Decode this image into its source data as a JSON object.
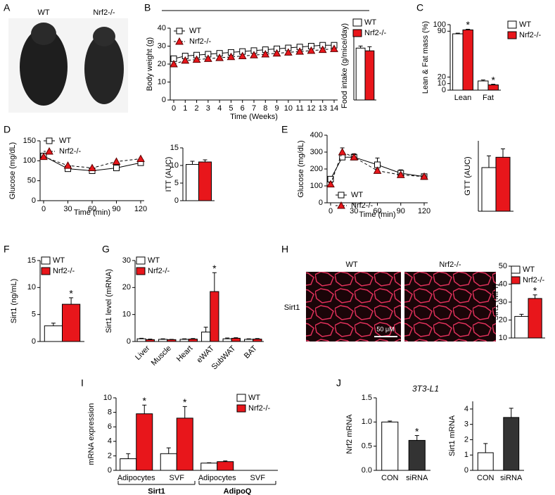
{
  "chart_data": [
    {
      "type": "image",
      "panel": "A",
      "labels": [
        "WT",
        "Nrf2-/-"
      ]
    },
    {
      "type": "line",
      "panel": "B",
      "xlabel": "Time (Weeks)",
      "ylabel": "Body weight (g)",
      "legend": "upper left",
      "x": [
        0,
        1,
        2,
        3,
        4,
        5,
        6,
        7,
        8,
        9,
        10,
        11,
        12,
        13,
        14
      ],
      "xlim": [
        0,
        14
      ],
      "xticks": [
        0,
        1,
        2,
        3,
        4,
        5,
        6,
        7,
        8,
        9,
        10,
        11,
        12,
        13,
        14
      ],
      "ylim": [
        0,
        40
      ],
      "yticks": [
        0,
        10,
        20,
        30,
        40
      ],
      "series": [
        {
          "name": "WT",
          "color": "#ffffff",
          "marker": "square",
          "values": [
            23,
            24.5,
            25,
            25.5,
            26,
            26.5,
            27,
            27.5,
            28,
            28.5,
            29,
            29.5,
            30,
            30.5,
            30.5
          ]
        },
        {
          "name": "Nrf2-/-",
          "color": "#e8161b",
          "marker": "triangle",
          "dashed": true,
          "values": [
            20,
            22,
            22.5,
            23,
            23.5,
            24,
            24.5,
            25,
            25.5,
            26,
            26.5,
            27,
            27.5,
            28,
            28.5
          ]
        }
      ]
    },
    {
      "type": "bar",
      "ylabel": "Food intake (g/mice/day)",
      "legend": "upper right",
      "categories": [
        null
      ],
      "ylim": [
        0,
        5
      ],
      "series": [
        {
          "name": "WT",
          "color": "#ffffff",
          "values": [
            3.8
          ],
          "errors": [
            0.15
          ]
        },
        {
          "name": "Nrf2-/-",
          "color": "#e8161b",
          "values": [
            3.6
          ],
          "errors": [
            0.3
          ]
        }
      ]
    },
    {
      "type": "bar",
      "panel": "C",
      "ylabel": "Lean & Fat mass (%)",
      "legend": "upper right",
      "categories": [
        "Lean",
        "Fat"
      ],
      "ylim": [
        0,
        100
      ],
      "yticks": [
        0,
        10,
        20,
        90,
        100
      ],
      "series": [
        {
          "name": "WT",
          "color": "#ffffff",
          "values": [
            86,
            14
          ],
          "errors": [
            1,
            1.5
          ]
        },
        {
          "name": "Nrf2-/-",
          "color": "#e8161b",
          "values": [
            92,
            8
          ],
          "errors": [
            1,
            1
          ]
        }
      ],
      "annotations": [
        {
          "text": "*",
          "series": 1,
          "index": 0
        },
        {
          "text": "*",
          "series": 1,
          "index": 1
        }
      ]
    },
    {
      "type": "line",
      "panel": "D",
      "xlabel": "Time (min)",
      "ylabel": "Glucose (mg/dL)",
      "legend": "upper left",
      "x": [
        0,
        30,
        60,
        90,
        120
      ],
      "xlim": [
        0,
        120
      ],
      "xticks": [
        0,
        30,
        60,
        90,
        120
      ],
      "ylim": [
        0,
        150
      ],
      "yticks": [
        0,
        50,
        100,
        150
      ],
      "series": [
        {
          "name": "WT",
          "color": "#ffffff",
          "marker": "square",
          "values": [
            112,
            80,
            75,
            82,
            95
          ]
        },
        {
          "name": "Nrf2-/-",
          "color": "#e8161b",
          "marker": "triangle",
          "dashed": true,
          "values": [
            110,
            88,
            82,
            98,
            105
          ]
        }
      ]
    },
    {
      "type": "bar",
      "ylabel": "ITT (AUC)",
      "categories": [
        null
      ],
      "ylim": [
        0,
        15
      ],
      "yticks": [
        0,
        5,
        10,
        15
      ],
      "series": [
        {
          "name": "WT",
          "color": "#ffffff",
          "values": [
            10.3
          ],
          "errors": [
            0.9
          ]
        },
        {
          "name": "Nrf2-/-",
          "color": "#e8161b",
          "values": [
            11
          ],
          "errors": [
            0.6
          ]
        }
      ]
    },
    {
      "type": "line",
      "panel": "E",
      "xlabel": "Time (min)",
      "ylabel": "Glucose (mg/dL)",
      "legend": "lower left",
      "x": [
        0,
        15,
        30,
        60,
        90,
        120
      ],
      "xlim": [
        0,
        120
      ],
      "xticks": [
        0,
        30,
        60,
        90,
        120
      ],
      "ylim": [
        0,
        400
      ],
      "yticks": [
        0,
        100,
        200,
        300,
        400
      ],
      "series": [
        {
          "name": "WT",
          "color": "#ffffff",
          "marker": "square",
          "values": [
            140,
            270,
            270,
            225,
            175,
            155
          ],
          "errors": [
            10,
            20,
            20,
            40,
            20,
            10
          ]
        },
        {
          "name": "Nrf2-/-",
          "color": "#e8161b",
          "marker": "triangle",
          "dashed": true,
          "values": [
            110,
            300,
            270,
            190,
            165,
            155
          ],
          "errors": [
            10,
            25,
            15,
            10,
            10,
            8
          ]
        }
      ]
    },
    {
      "type": "bar",
      "ylabel": "GTT (AUC)",
      "categories": [
        null
      ],
      "ylim": [
        0,
        15
      ],
      "series": [
        {
          "name": "WT",
          "color": "#ffffff",
          "values": [
            9.3
          ],
          "errors": [
            2.5
          ]
        },
        {
          "name": "Nrf2-/-",
          "color": "#e8161b",
          "values": [
            11.5
          ],
          "errors": [
            1.8
          ]
        }
      ]
    },
    {
      "type": "bar",
      "panel": "F",
      "ylabel": "Sirt1 (ng/mL)",
      "legend": "upper left",
      "categories": [
        null
      ],
      "ylim": [
        0,
        15
      ],
      "yticks": [
        0,
        5,
        10,
        15
      ],
      "series": [
        {
          "name": "WT",
          "color": "#ffffff",
          "values": [
            2.9
          ],
          "errors": [
            0.5
          ]
        },
        {
          "name": "Nrf2-/-",
          "color": "#e8161b",
          "values": [
            6.9
          ],
          "errors": [
            1.2
          ]
        }
      ],
      "annotations": [
        {
          "text": "*",
          "series": 1,
          "index": 0
        }
      ]
    },
    {
      "type": "bar",
      "panel": "G",
      "ylabel": "Sirt1 level (mRNA)",
      "legend": "upper left",
      "xlabel_rotation": 45,
      "categories": [
        "Liver",
        "Muscle",
        "Heart",
        "eWAT",
        "SubWAT",
        "BAT"
      ],
      "ylim": [
        0,
        30
      ],
      "yticks": [
        0,
        10,
        20,
        30
      ],
      "series": [
        {
          "name": "WT",
          "color": "#ffffff",
          "values": [
            1.0,
            0.8,
            0.8,
            3.5,
            1.0,
            0.8
          ],
          "errors": [
            0.2,
            0.2,
            0.2,
            1.8,
            0.3,
            0.2
          ]
        },
        {
          "name": "Nrf2-/-",
          "color": "#e8161b",
          "values": [
            0.7,
            0.7,
            0.9,
            18.5,
            1.2,
            0.9
          ],
          "errors": [
            0.2,
            0.1,
            0.2,
            7,
            0.2,
            0.2
          ]
        }
      ],
      "annotations": [
        {
          "text": "*",
          "series": 1,
          "index": 3
        }
      ]
    },
    {
      "type": "image",
      "panel": "H",
      "labels": [
        "WT",
        "Nrf2-/-"
      ],
      "stain": "Sirt1",
      "scale_bar": "50 μM"
    },
    {
      "type": "bar",
      "ylabel": "Sirt1 (MFI)",
      "legend": "upper left",
      "categories": [
        null
      ],
      "ylim": [
        10,
        50
      ],
      "yticks": [
        10,
        20,
        30,
        40,
        50
      ],
      "series": [
        {
          "name": "WT",
          "color": "#ffffff",
          "values": [
            22
          ],
          "errors": [
            1.2
          ]
        },
        {
          "name": "Nrf2-/-",
          "color": "#e8161b",
          "values": [
            32
          ],
          "errors": [
            2
          ]
        }
      ],
      "annotations": [
        {
          "text": "*",
          "series": 1,
          "index": 0
        }
      ]
    },
    {
      "type": "bar",
      "panel": "I",
      "ylabel": "mRNA expression",
      "legend": "upper right",
      "categories": [
        "Adipocytes",
        "SVF",
        "Adipocytes",
        "SVF"
      ],
      "groups": [
        "Sirt1",
        "AdipoQ"
      ],
      "ylim": [
        0,
        10
      ],
      "yticks": [
        0,
        2,
        4,
        6,
        8,
        10
      ],
      "series": [
        {
          "name": "WT",
          "color": "#ffffff",
          "values": [
            1.6,
            2.3,
            1.0,
            null
          ],
          "errors": [
            0.7,
            0.8,
            0.05,
            null
          ]
        },
        {
          "name": "Nrf2-/-",
          "color": "#e8161b",
          "values": [
            7.8,
            7.2,
            1.2,
            null
          ],
          "errors": [
            1.2,
            1.6,
            0.1,
            null
          ]
        }
      ],
      "annotations": [
        {
          "text": "*",
          "series": 1,
          "index": 0
        },
        {
          "text": "*",
          "series": 1,
          "index": 1
        }
      ]
    },
    {
      "type": "bar",
      "panel": "J",
      "subtitle": "3T3-L1",
      "ylabel": "Nrf2 mRNA",
      "categories": [
        "CON",
        "siRNA"
      ],
      "ylim": [
        0,
        1.5
      ],
      "yticks": [
        {
          "value": 0,
          "label": "0.0"
        },
        0.5,
        {
          "value": 1,
          "label": "1.0"
        },
        1.5
      ],
      "series": [
        {
          "colors": [
            "#ffffff",
            "#333333"
          ],
          "values": [
            1.0,
            0.62
          ],
          "errors": [
            0.02,
            0.1
          ]
        }
      ],
      "annotations": [
        {
          "text": "*",
          "series": 0,
          "index": 1
        }
      ]
    },
    {
      "type": "bar",
      "ylabel": "Sirt1 mRNA",
      "categories": [
        "CON",
        "siRNA"
      ],
      "ylim": [
        0,
        4.5
      ],
      "yticks": [
        0,
        1,
        2,
        3,
        4
      ],
      "series": [
        {
          "colors": [
            "#ffffff",
            "#333333"
          ],
          "values": [
            1.15,
            3.45
          ],
          "errors": [
            0.6,
            0.6
          ]
        }
      ]
    }
  ]
}
